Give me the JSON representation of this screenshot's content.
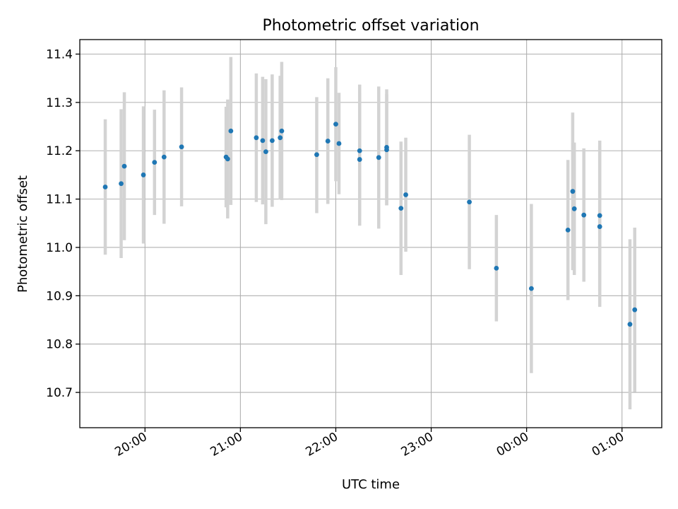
{
  "chart_data": {
    "type": "scatter",
    "title": "Photometric offset variation",
    "xlabel": "UTC time",
    "ylabel": "Photometric offset",
    "xaxis_type": "time",
    "xlim": [
      "19:19",
      "01:25"
    ],
    "ylim": [
      10.627,
      11.43
    ],
    "xticks": [
      "20:00",
      "21:00",
      "22:00",
      "23:00",
      "00:00",
      "01:00"
    ],
    "yticks": [
      "10.7",
      "10.8",
      "10.9",
      "11.0",
      "11.1",
      "11.2",
      "11.3",
      "11.4"
    ],
    "grid": true,
    "colors": {
      "point": "#1f77b4",
      "errorbar": "#d3d3d3"
    },
    "series": [
      {
        "points": [
          {
            "x": "19:35",
            "y": 11.125,
            "ylo": 10.985,
            "yhi": 11.265
          },
          {
            "x": "19:45",
            "y": 11.132,
            "ylo": 10.978,
            "yhi": 11.286
          },
          {
            "x": "19:47",
            "y": 11.168,
            "ylo": 11.015,
            "yhi": 11.321
          },
          {
            "x": "19:59",
            "y": 11.15,
            "ylo": 11.008,
            "yhi": 11.292
          },
          {
            "x": "20:06",
            "y": 11.176,
            "ylo": 11.067,
            "yhi": 11.285
          },
          {
            "x": "20:12",
            "y": 11.187,
            "ylo": 11.049,
            "yhi": 11.325
          },
          {
            "x": "20:23",
            "y": 11.208,
            "ylo": 11.085,
            "yhi": 11.331
          },
          {
            "x": "20:51",
            "y": 11.187,
            "ylo": 11.083,
            "yhi": 11.291
          },
          {
            "x": "20:52",
            "y": 11.183,
            "ylo": 11.06,
            "yhi": 11.306
          },
          {
            "x": "20:54",
            "y": 11.241,
            "ylo": 11.088,
            "yhi": 11.394
          },
          {
            "x": "21:10",
            "y": 11.227,
            "ylo": 11.094,
            "yhi": 11.36
          },
          {
            "x": "21:14",
            "y": 11.221,
            "ylo": 11.089,
            "yhi": 11.353
          },
          {
            "x": "21:16",
            "y": 11.198,
            "ylo": 11.048,
            "yhi": 11.348
          },
          {
            "x": "21:20",
            "y": 11.221,
            "ylo": 11.084,
            "yhi": 11.358
          },
          {
            "x": "21:25",
            "y": 11.227,
            "ylo": 11.099,
            "yhi": 11.355
          },
          {
            "x": "21:26",
            "y": 11.241,
            "ylo": 11.098,
            "yhi": 11.384
          },
          {
            "x": "21:48",
            "y": 11.192,
            "ylo": 11.071,
            "yhi": 11.311
          },
          {
            "x": "21:55",
            "y": 11.22,
            "ylo": 11.09,
            "yhi": 11.35
          },
          {
            "x": "22:00",
            "y": 11.255,
            "ylo": 11.137,
            "yhi": 11.373
          },
          {
            "x": "22:02",
            "y": 11.215,
            "ylo": 11.11,
            "yhi": 11.32
          },
          {
            "x": "22:15",
            "y": 11.182,
            "ylo": 11.045,
            "yhi": 11.32
          },
          {
            "x": "22:15",
            "y": 11.2,
            "ylo": 11.063,
            "yhi": 11.337
          },
          {
            "x": "22:27",
            "y": 11.186,
            "ylo": 11.039,
            "yhi": 11.333
          },
          {
            "x": "22:32",
            "y": 11.207,
            "ylo": 11.087,
            "yhi": 11.327
          },
          {
            "x": "22:32",
            "y": 11.202,
            "ylo": 11.087,
            "yhi": 11.317
          },
          {
            "x": "22:41",
            "y": 11.081,
            "ylo": 10.943,
            "yhi": 11.219
          },
          {
            "x": "22:44",
            "y": 11.109,
            "ylo": 10.991,
            "yhi": 11.227
          },
          {
            "x": "23:24",
            "y": 11.094,
            "ylo": 10.955,
            "yhi": 11.233
          },
          {
            "x": "23:41",
            "y": 10.957,
            "ylo": 10.847,
            "yhi": 11.067
          },
          {
            "x": "00:03",
            "y": 10.915,
            "ylo": 10.74,
            "yhi": 11.09
          },
          {
            "x": "00:26",
            "y": 11.036,
            "ylo": 10.891,
            "yhi": 11.181
          },
          {
            "x": "00:29",
            "y": 11.116,
            "ylo": 10.953,
            "yhi": 11.279
          },
          {
            "x": "00:30",
            "y": 11.08,
            "ylo": 10.943,
            "yhi": 11.217
          },
          {
            "x": "00:36",
            "y": 11.067,
            "ylo": 10.929,
            "yhi": 11.205
          },
          {
            "x": "00:46",
            "y": 11.066,
            "ylo": 10.911,
            "yhi": 11.221
          },
          {
            "x": "00:46",
            "y": 11.043,
            "ylo": 10.877,
            "yhi": 11.209
          },
          {
            "x": "01:05",
            "y": 10.841,
            "ylo": 10.665,
            "yhi": 11.017
          },
          {
            "x": "01:08",
            "y": 10.871,
            "ylo": 10.701,
            "yhi": 11.041
          }
        ]
      }
    ]
  }
}
